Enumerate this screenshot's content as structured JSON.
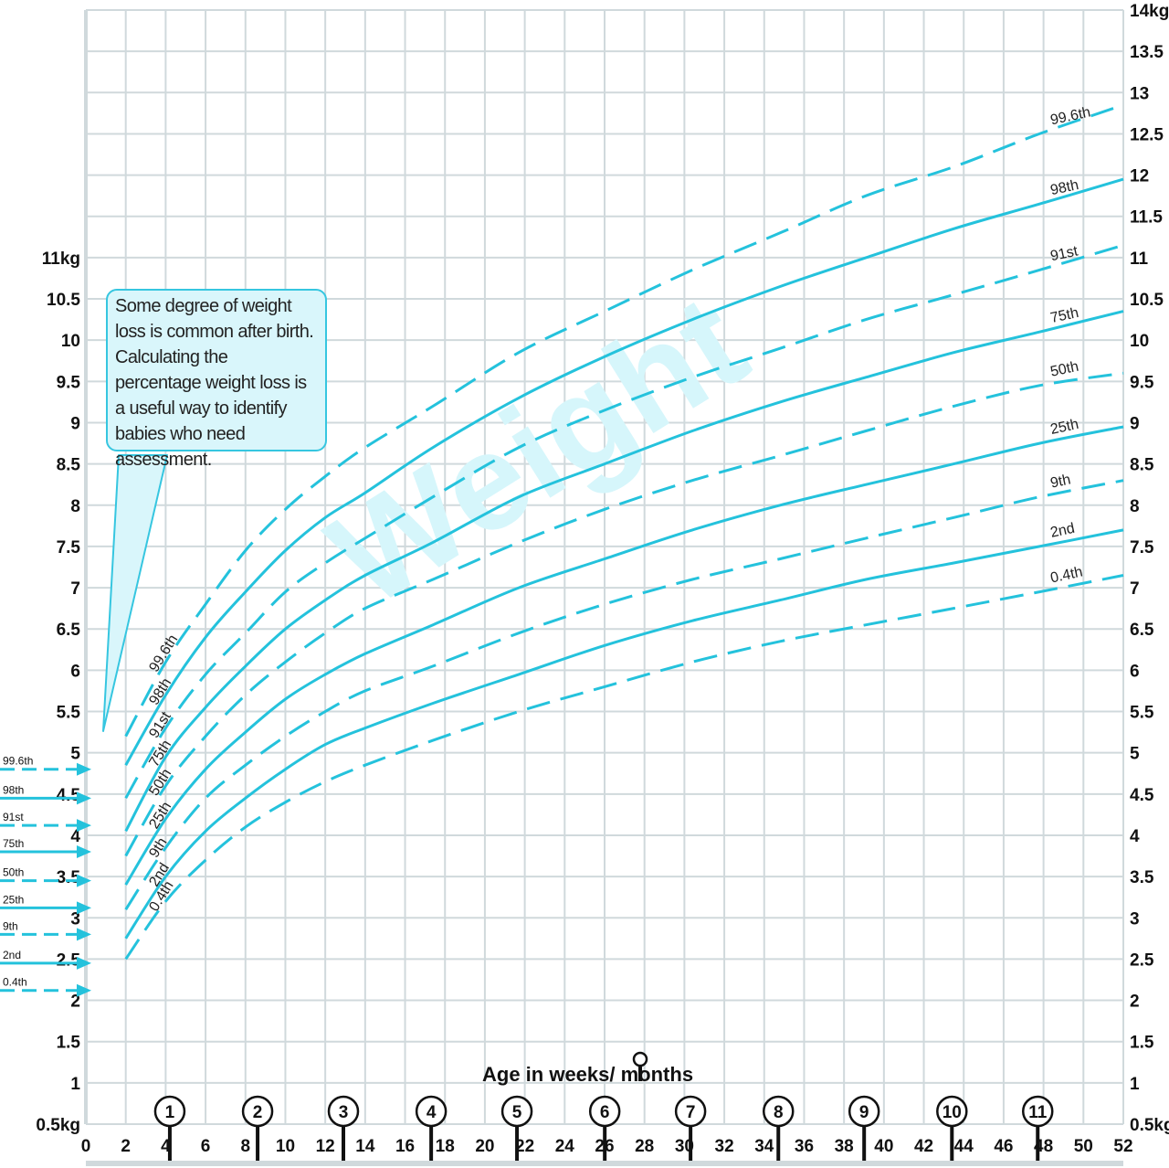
{
  "colors": {
    "curve": "#24c2dc",
    "grid": "#d0d9dc",
    "box_fill": "#d9f6fb",
    "box_border": "#36c6e0",
    "watermark": "#d6f6fb",
    "text": "#111111"
  },
  "note_text": "Some degree of weight loss is common after birth. Calculating the percentage weight loss is a useful way to identify babies who need assessment.",
  "chart_data": {
    "type": "line",
    "title": "",
    "watermark": "Weight",
    "xlabel": "Age in weeks/ months",
    "x_unit_note": "weeks",
    "xlim": [
      0,
      52
    ],
    "x_ticks": [
      "0",
      "2",
      "4",
      "6",
      "8",
      "10",
      "12",
      "14",
      "16",
      "18",
      "20",
      "22",
      "24",
      "26",
      "28",
      "30",
      "32",
      "34",
      "36",
      "38",
      "40",
      "42",
      "44",
      "46",
      "48",
      "50",
      "52"
    ],
    "month_markers": [
      "1",
      "2",
      "3",
      "4",
      "5",
      "6",
      "7",
      "8",
      "9",
      "10",
      "11"
    ],
    "month_weeks": [
      4.3,
      8.7,
      13,
      17.4,
      21.7,
      26.1,
      30.4,
      34.8,
      39.1,
      43.5,
      47.8
    ],
    "ylim": [
      0.5,
      14
    ],
    "ylabel": "",
    "y_ticks_right": [
      "0.5kg",
      "1",
      "1.5",
      "2",
      "2.5",
      "3",
      "3.5",
      "4",
      "4.5",
      "5",
      "5.5",
      "6",
      "6.5",
      "7",
      "7.5",
      "8",
      "8.5",
      "9",
      "9.5",
      "10",
      "10.5",
      "11",
      "11.5",
      "12",
      "12.5",
      "13",
      "13.5",
      "14kg"
    ],
    "y_ticks_left": [
      "0.5kg",
      "1",
      "1.5",
      "2",
      "2.5",
      "3",
      "3.5",
      "4",
      "4.5",
      "5",
      "5.5",
      "6",
      "6.5",
      "7",
      "7.5",
      "8",
      "8.5",
      "9",
      "9.5",
      "10",
      "10.5",
      "11kg"
    ],
    "x": [
      2,
      4,
      6,
      8,
      10,
      12,
      14,
      17.4,
      21.7,
      26,
      30.4,
      34.8,
      39.1,
      43.5,
      47.8,
      52
    ],
    "series": [
      {
        "name": "99.6th",
        "dashed": true,
        "values": [
          5.2,
          6.1,
          6.8,
          7.45,
          7.95,
          8.35,
          8.7,
          9.2,
          9.85,
          10.35,
          10.85,
          11.3,
          11.75,
          12.1,
          12.5,
          12.85
        ]
      },
      {
        "name": "98th",
        "dashed": false,
        "values": [
          4.85,
          5.7,
          6.4,
          6.95,
          7.45,
          7.85,
          8.15,
          8.7,
          9.3,
          9.8,
          10.25,
          10.65,
          11.0,
          11.35,
          11.65,
          11.95
        ]
      },
      {
        "name": "91st",
        "dashed": true,
        "values": [
          4.45,
          5.3,
          5.95,
          6.45,
          6.95,
          7.3,
          7.6,
          8.1,
          8.7,
          9.15,
          9.55,
          9.9,
          10.25,
          10.55,
          10.85,
          11.15
        ]
      },
      {
        "name": "75th",
        "dashed": false,
        "values": [
          4.05,
          4.95,
          5.55,
          6.05,
          6.5,
          6.85,
          7.15,
          7.55,
          8.1,
          8.5,
          8.9,
          9.25,
          9.55,
          9.85,
          10.1,
          10.35
        ]
      },
      {
        "name": "50th",
        "dashed": true,
        "values": [
          3.75,
          4.6,
          5.2,
          5.7,
          6.1,
          6.45,
          6.75,
          7.1,
          7.55,
          7.95,
          8.3,
          8.6,
          8.9,
          9.2,
          9.45,
          9.6
        ]
      },
      {
        "name": "25th",
        "dashed": false,
        "values": [
          3.4,
          4.2,
          4.8,
          5.25,
          5.65,
          5.95,
          6.2,
          6.55,
          7.0,
          7.35,
          7.7,
          8.0,
          8.25,
          8.5,
          8.75,
          8.95
        ]
      },
      {
        "name": "9th",
        "dashed": true,
        "values": [
          3.1,
          3.85,
          4.45,
          4.85,
          5.2,
          5.5,
          5.75,
          6.05,
          6.45,
          6.8,
          7.1,
          7.35,
          7.6,
          7.85,
          8.1,
          8.3
        ]
      },
      {
        "name": "2nd",
        "dashed": false,
        "values": [
          2.75,
          3.5,
          4.05,
          4.45,
          4.8,
          5.1,
          5.3,
          5.6,
          5.95,
          6.3,
          6.6,
          6.85,
          7.1,
          7.3,
          7.5,
          7.7
        ]
      },
      {
        "name": "0.4th",
        "dashed": true,
        "values": [
          2.5,
          3.2,
          3.7,
          4.1,
          4.4,
          4.65,
          4.85,
          5.15,
          5.5,
          5.8,
          6.1,
          6.35,
          6.55,
          6.75,
          6.95,
          7.15
        ]
      }
    ],
    "birth_centiles": [
      {
        "name": "99.6th",
        "value": 4.8,
        "dashed": true
      },
      {
        "name": "98th",
        "value": 4.45,
        "dashed": false
      },
      {
        "name": "91st",
        "value": 4.12,
        "dashed": true
      },
      {
        "name": "75th",
        "value": 3.8,
        "dashed": false
      },
      {
        "name": "50th",
        "value": 3.45,
        "dashed": true
      },
      {
        "name": "25th",
        "value": 3.12,
        "dashed": false
      },
      {
        "name": "9th",
        "value": 2.8,
        "dashed": true
      },
      {
        "name": "2nd",
        "value": 2.45,
        "dashed": false
      },
      {
        "name": "0.4th",
        "value": 2.12,
        "dashed": true
      }
    ]
  }
}
